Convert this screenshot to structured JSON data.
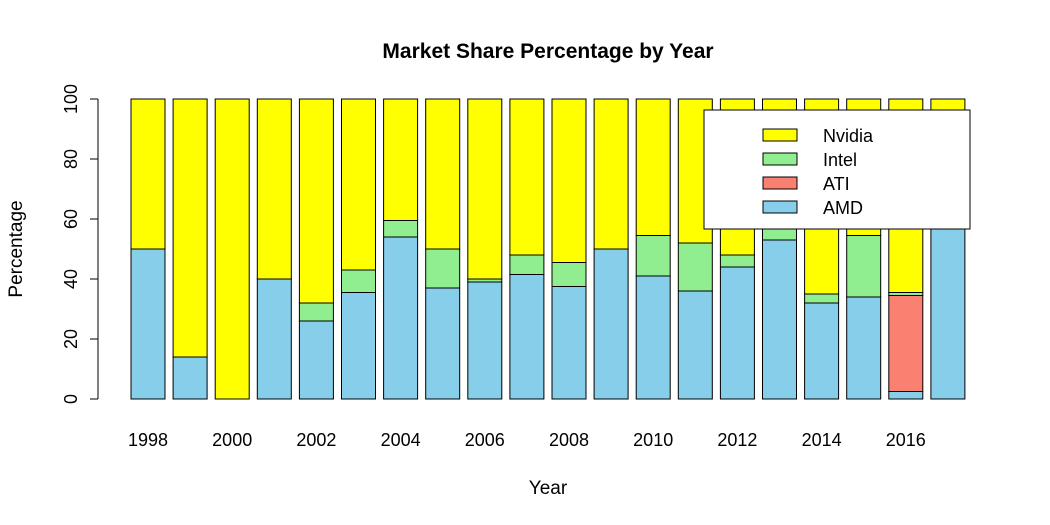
{
  "chart_data": {
    "type": "bar",
    "stacked": true,
    "title": "Market Share Percentage by Year",
    "xlabel": "Year",
    "ylabel": "Percentage",
    "ylim": [
      0,
      100
    ],
    "yticks": [
      "0",
      "20",
      "40",
      "60",
      "80",
      "100"
    ],
    "categories": [
      "1998",
      "1999",
      "2000",
      "2001",
      "2002",
      "2003",
      "2004",
      "2005",
      "2006",
      "2007",
      "2008",
      "2009",
      "2010",
      "2011",
      "2012",
      "2013",
      "2014",
      "2015",
      "2016",
      "2017"
    ],
    "xtick_labels": [
      "1998",
      "2000",
      "2002",
      "2004",
      "2006",
      "2008",
      "2010",
      "2012",
      "2014",
      "2016"
    ],
    "series": [
      {
        "name": "AMD",
        "color": "#87CEEB",
        "values": [
          50,
          14,
          0,
          40,
          26,
          35.5,
          54,
          37,
          39,
          41.5,
          37.5,
          50,
          41,
          36,
          44,
          53,
          32,
          34,
          2.5,
          59
        ]
      },
      {
        "name": "ATI",
        "color": "#FA8072",
        "values": [
          0,
          0,
          0,
          0,
          0,
          0,
          0,
          0,
          0,
          0,
          0,
          0,
          0,
          0,
          0,
          0,
          0,
          0,
          32,
          0
        ]
      },
      {
        "name": "Intel",
        "color": "#90EE90",
        "values": [
          0,
          0,
          0,
          0,
          6,
          7.5,
          5.5,
          13,
          1,
          6.5,
          8,
          0,
          13.5,
          16,
          4,
          8,
          3,
          20.5,
          1,
          0
        ]
      },
      {
        "name": "Nvidia",
        "color": "#FFFF00",
        "values": [
          50,
          86,
          100,
          60,
          68,
          57,
          40.5,
          50,
          60,
          52,
          54.5,
          50,
          45.5,
          48,
          52,
          39,
          65,
          45.5,
          64.5,
          41
        ]
      }
    ],
    "legend": {
      "placement": "top-right",
      "entries": [
        {
          "name": "Nvidia",
          "color": "#FFFF00"
        },
        {
          "name": "Intel",
          "color": "#90EE90"
        },
        {
          "name": "ATI",
          "color": "#FA8072"
        },
        {
          "name": "AMD",
          "color": "#87CEEB"
        }
      ]
    },
    "grid": false
  }
}
